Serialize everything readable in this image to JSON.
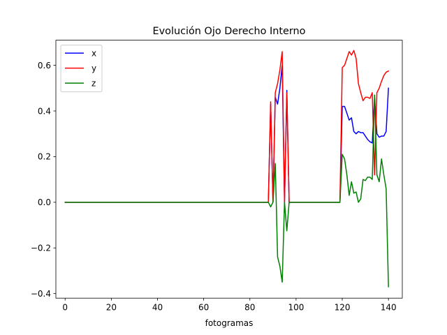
{
  "chart_data": {
    "type": "line",
    "title": "Evolución Ojo Derecho Interno",
    "xlabel": "fotogramas",
    "ylabel": "",
    "xlim": [
      -4,
      146
    ],
    "ylim": [
      -0.42,
      0.71
    ],
    "x_ticks": [
      0,
      20,
      40,
      60,
      80,
      100,
      120,
      140
    ],
    "y_ticks": [
      -0.4,
      -0.2,
      0.0,
      0.2,
      0.4,
      0.6
    ],
    "y_tick_labels": [
      "−0.4",
      "−0.2",
      "0.0",
      "0.2",
      "0.4",
      "0.6"
    ],
    "grid": false,
    "legend_position": "upper-left",
    "series": [
      {
        "name": "x",
        "color": "#0000ff",
        "points": [
          [
            0,
            0
          ],
          [
            88,
            0
          ],
          [
            89,
            0.43
          ],
          [
            90,
            0
          ],
          [
            91,
            0.46
          ],
          [
            92,
            0.43
          ],
          [
            93,
            0.5
          ],
          [
            94,
            0.6
          ],
          [
            95,
            0
          ],
          [
            96,
            0.49
          ],
          [
            97,
            0
          ],
          [
            119,
            0
          ],
          [
            120,
            0.42
          ],
          [
            121,
            0.42
          ],
          [
            122,
            0.39
          ],
          [
            123,
            0.36
          ],
          [
            124,
            0.37
          ],
          [
            125,
            0.31
          ],
          [
            126,
            0.3
          ],
          [
            127,
            0.31
          ],
          [
            128,
            0.305
          ],
          [
            129,
            0.305
          ],
          [
            130,
            0.29
          ],
          [
            131,
            0.275
          ],
          [
            132,
            0.265
          ],
          [
            133,
            0.26
          ],
          [
            134,
            0.46
          ],
          [
            135,
            0.3
          ],
          [
            136,
            0.285
          ],
          [
            137,
            0.29
          ],
          [
            138,
            0.29
          ],
          [
            139,
            0.31
          ],
          [
            140,
            0.5
          ]
        ]
      },
      {
        "name": "y",
        "color": "#ff0000",
        "points": [
          [
            0,
            0
          ],
          [
            88,
            0
          ],
          [
            89,
            0.44
          ],
          [
            90,
            0
          ],
          [
            91,
            0.48
          ],
          [
            92,
            0.52
          ],
          [
            93,
            0.58
          ],
          [
            94,
            0.66
          ],
          [
            95,
            0
          ],
          [
            96,
            0.48
          ],
          [
            97,
            0
          ],
          [
            119,
            0
          ],
          [
            120,
            0.59
          ],
          [
            121,
            0.6
          ],
          [
            122,
            0.63
          ],
          [
            123,
            0.66
          ],
          [
            124,
            0.645
          ],
          [
            125,
            0.665
          ],
          [
            126,
            0.63
          ],
          [
            127,
            0.52
          ],
          [
            128,
            0.48
          ],
          [
            129,
            0.445
          ],
          [
            130,
            0.46
          ],
          [
            131,
            0.46
          ],
          [
            132,
            0.455
          ],
          [
            133,
            0.48
          ],
          [
            134,
            0.12
          ],
          [
            135,
            0.48
          ],
          [
            136,
            0.5
          ],
          [
            137,
            0.53
          ],
          [
            138,
            0.555
          ],
          [
            139,
            0.57
          ],
          [
            140,
            0.575
          ]
        ]
      },
      {
        "name": "z",
        "color": "#008000",
        "points": [
          [
            0,
            0
          ],
          [
            88,
            0
          ],
          [
            89,
            -0.02
          ],
          [
            90,
            0
          ],
          [
            91,
            0.17
          ],
          [
            92,
            -0.24
          ],
          [
            93,
            -0.28
          ],
          [
            94,
            -0.35
          ],
          [
            95,
            0
          ],
          [
            96,
            -0.125
          ],
          [
            97,
            0
          ],
          [
            119,
            0
          ],
          [
            120,
            0.21
          ],
          [
            121,
            0.19
          ],
          [
            122,
            0.12
          ],
          [
            123,
            0.03
          ],
          [
            124,
            0.09
          ],
          [
            125,
            0.04
          ],
          [
            126,
            0.045
          ],
          [
            127,
            0
          ],
          [
            128,
            0.015
          ],
          [
            129,
            0.1
          ],
          [
            130,
            0.095
          ],
          [
            131,
            0.11
          ],
          [
            132,
            0.11
          ],
          [
            133,
            0.1
          ],
          [
            134,
            0.47
          ],
          [
            135,
            0.12
          ],
          [
            136,
            0.09
          ],
          [
            137,
            0.19
          ],
          [
            138,
            0.12
          ],
          [
            139,
            0.06
          ],
          [
            140,
            -0.37
          ]
        ]
      }
    ]
  }
}
